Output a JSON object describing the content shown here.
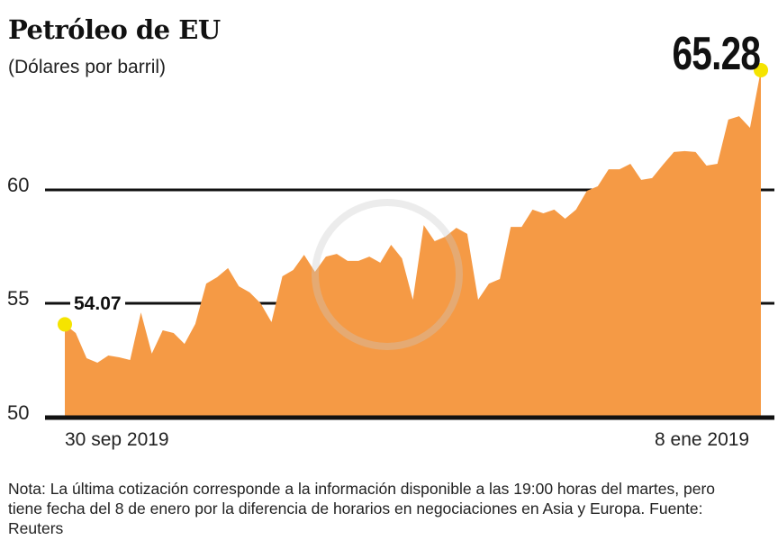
{
  "chart_data": {
    "type": "area",
    "title": "Petróleo de EU",
    "subtitle": "(Dólares por barril)",
    "xlabel": "",
    "ylabel": "",
    "x_tick_labels": [
      "30 sep 2019",
      "8 ene 2019"
    ],
    "y_ticks": [
      50,
      55,
      60
    ],
    "ylim": [
      50,
      66
    ],
    "grid": true,
    "values": [
      54.07,
      53.69,
      52.58,
      52.38,
      52.7,
      52.62,
      52.5,
      54.6,
      52.78,
      53.81,
      53.69,
      53.21,
      54.09,
      55.87,
      56.15,
      56.55,
      55.75,
      55.48,
      55.0,
      54.17,
      56.19,
      56.47,
      57.14,
      56.39,
      57.06,
      57.18,
      56.87,
      56.87,
      57.06,
      56.79,
      57.58,
      56.98,
      55.16,
      58.45,
      57.74,
      57.94,
      58.33,
      58.06,
      55.16,
      55.87,
      56.07,
      58.37,
      58.37,
      59.13,
      58.97,
      59.13,
      58.73,
      59.13,
      59.96,
      60.16,
      60.91,
      60.91,
      61.15,
      60.44,
      60.52,
      61.11,
      61.67,
      61.71,
      61.67,
      61.07,
      61.15,
      63.1,
      63.25,
      62.74,
      65.28
    ],
    "annotations": {
      "first": "54.07",
      "last": "65.28"
    },
    "colors": {
      "area": "#f59a45",
      "marker": "#f5e400",
      "grid": "#111111"
    }
  },
  "note": "Nota: La última cotización corresponde a la información disponible a las 19:00 horas del martes, pero tiene fecha del 8 de enero por la diferencia de horarios en negociaciones en Asia y Europa. Fuente: Reuters"
}
